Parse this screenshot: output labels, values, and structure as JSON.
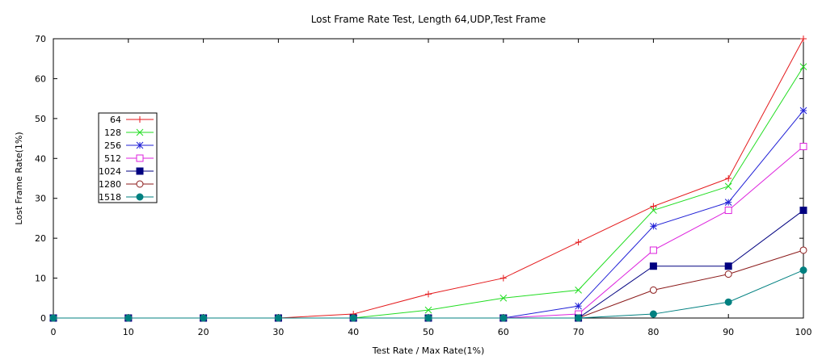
{
  "chart_data": {
    "type": "line",
    "title": "Lost Frame Rate Test, Length 64,UDP,Test Frame",
    "xlabel": "Test Rate / Max Rate(1%)",
    "ylabel": "Lost Frame Rate(1%)",
    "x": [
      0,
      10,
      20,
      30,
      40,
      50,
      60,
      70,
      80,
      90,
      100
    ],
    "xticks": [
      "0",
      "10",
      "20",
      "30",
      "40",
      "50",
      "60",
      "70",
      "80",
      "90",
      "100"
    ],
    "yticks": [
      "0",
      "10",
      "20",
      "30",
      "40",
      "50",
      "60",
      "70"
    ],
    "xlim": [
      0,
      100
    ],
    "ylim": [
      0,
      70
    ],
    "grid": false,
    "legend_position": "left",
    "series": [
      {
        "name": "64",
        "color": "#e41a1c",
        "marker": "plus",
        "values": [
          0,
          0,
          0,
          0,
          1,
          6,
          10,
          19,
          28,
          35,
          70
        ]
      },
      {
        "name": "128",
        "color": "#22dd22",
        "marker": "cross",
        "values": [
          0,
          0,
          0,
          0,
          0,
          2,
          5,
          7,
          27,
          33,
          63
        ]
      },
      {
        "name": "256",
        "color": "#1f1fd6",
        "marker": "star",
        "values": [
          0,
          0,
          0,
          0,
          0,
          0,
          0,
          3,
          23,
          29,
          52
        ]
      },
      {
        "name": "512",
        "color": "#dd22dd",
        "marker": "open-square",
        "values": [
          0,
          0,
          0,
          0,
          0,
          0,
          0,
          1,
          17,
          27,
          43
        ]
      },
      {
        "name": "1024",
        "color": "#000080",
        "marker": "filled-square",
        "values": [
          0,
          0,
          0,
          0,
          0,
          0,
          0,
          0,
          13,
          13,
          27
        ]
      },
      {
        "name": "1280",
        "color": "#8b1a1a",
        "marker": "open-circle",
        "values": [
          0,
          0,
          0,
          0,
          0,
          0,
          0,
          0,
          7,
          11,
          17
        ]
      },
      {
        "name": "1518",
        "color": "#008080",
        "marker": "filled-circle",
        "values": [
          0,
          0,
          0,
          0,
          0,
          0,
          0,
          0,
          1,
          4,
          12
        ]
      }
    ]
  }
}
